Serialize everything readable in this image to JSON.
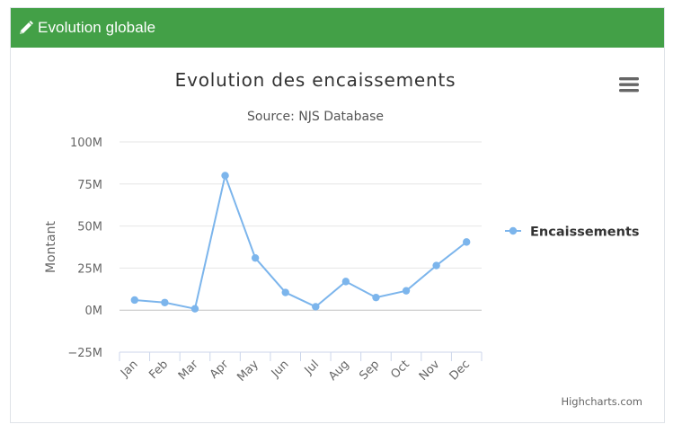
{
  "panel": {
    "title": "Evolution globale",
    "icon": "pencil-icon",
    "header_color": "#43a047"
  },
  "chart_menu": {
    "icon": "hamburger-menu-icon"
  },
  "credits": "Highcharts.com",
  "chart_data": {
    "type": "line",
    "title": "Evolution des encaissements",
    "subtitle": "Source: NJS Database",
    "ylabel": "Montant",
    "xlabel": "",
    "categories": [
      "Jan",
      "Feb",
      "Mar",
      "Apr",
      "May",
      "Jun",
      "Jul",
      "Aug",
      "Sep",
      "Oct",
      "Nov",
      "Dec"
    ],
    "series": [
      {
        "name": "Encaissements",
        "color": "#7cb5ec",
        "values": [
          6,
          4.5,
          0.8,
          80,
          31,
          10.5,
          2,
          17,
          7.5,
          11.5,
          26.5,
          40.5
        ]
      }
    ],
    "ylim": [
      -25,
      100
    ],
    "yticks": [
      -25,
      0,
      25,
      50,
      75,
      100
    ],
    "ytick_labels": [
      "−25M",
      "0M",
      "25M",
      "50M",
      "75M",
      "100M"
    ],
    "grid": true,
    "legend_position": "right"
  }
}
